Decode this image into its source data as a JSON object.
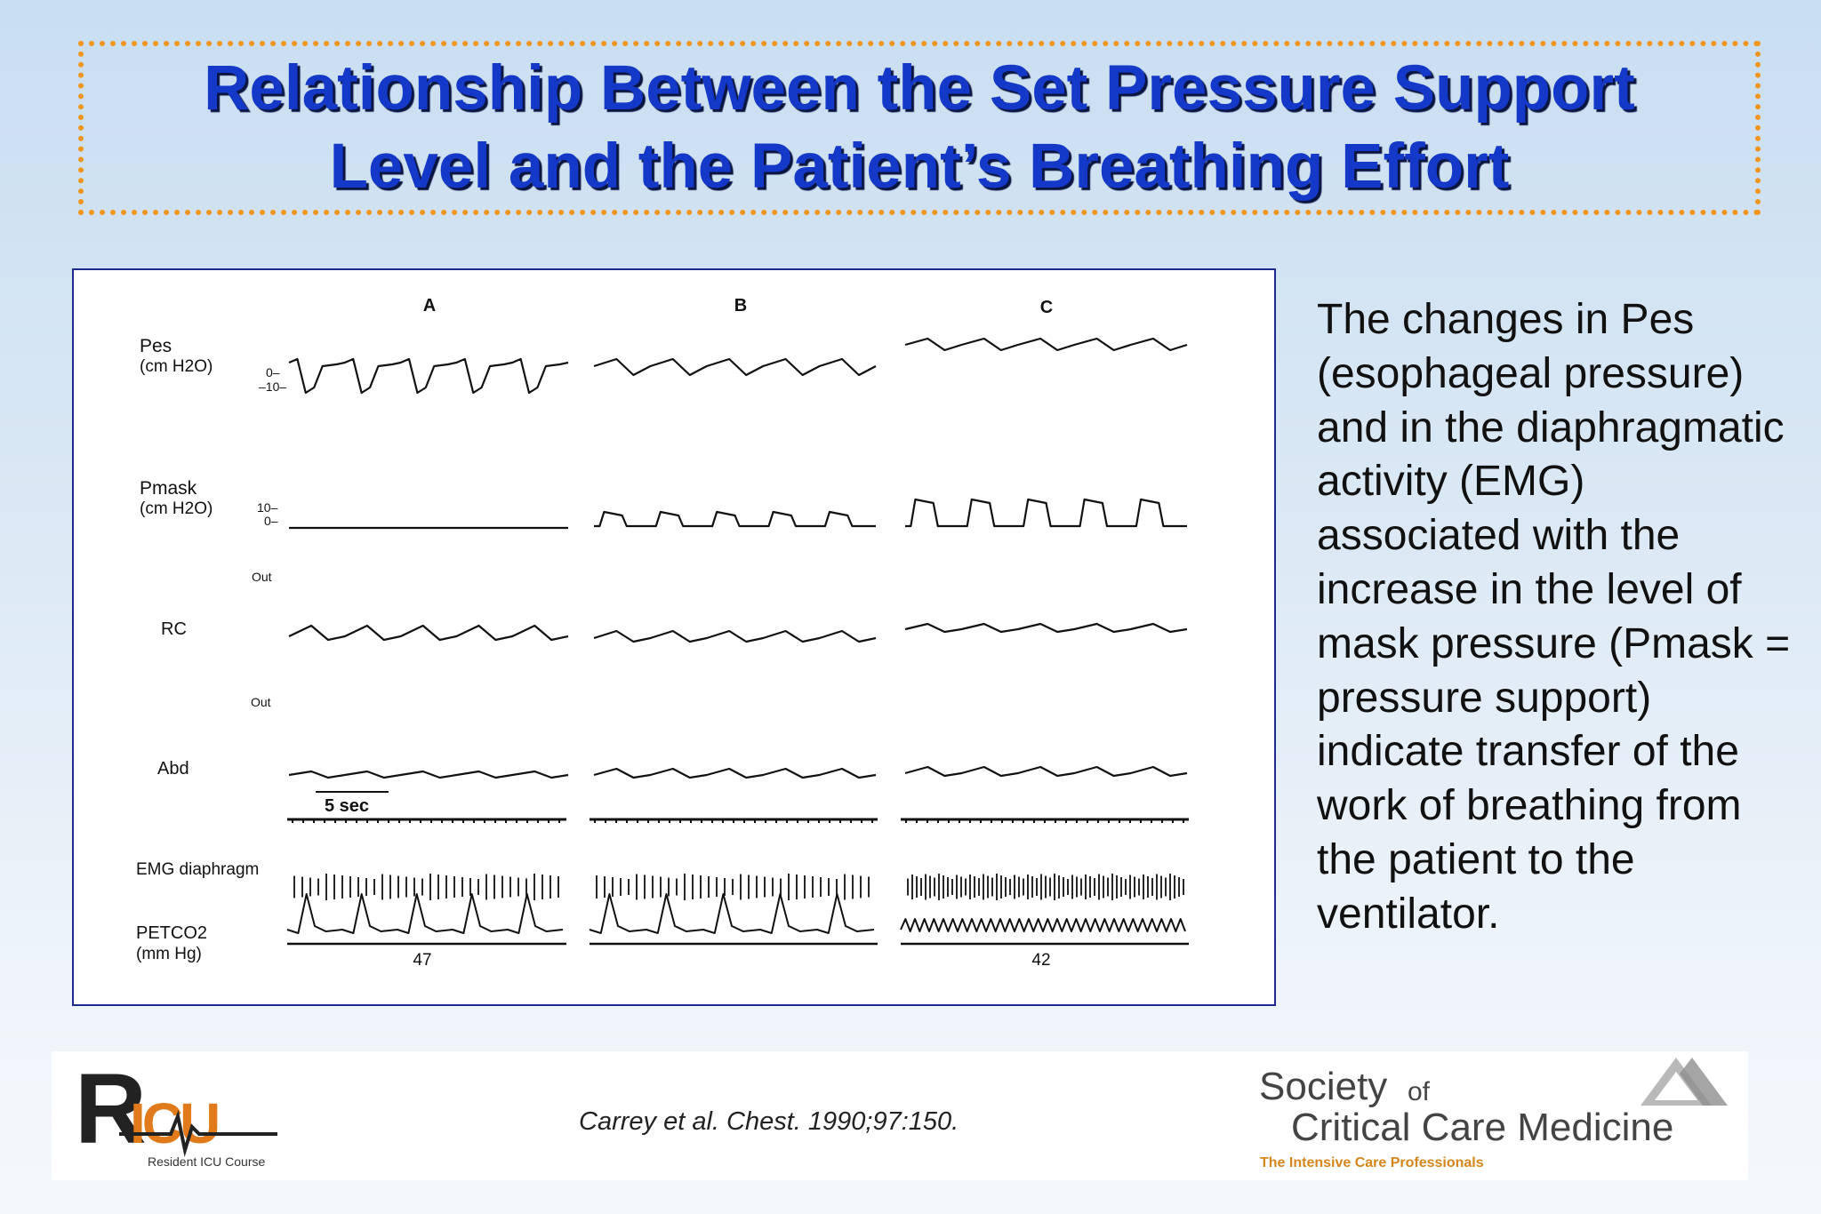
{
  "slide": {
    "title_line1": "Relationship Between the Set Pressure Support",
    "title_line2": "Level and the Patient’s Breathing Effort",
    "description": "The changes in Pes (esophageal pressure) and in the diaphragmatic activity (EMG) associated with the increase in the level of mask pressure (Pmask = pressure support) indicate transfer of the work of breathing from the patient to the ventilator.",
    "citation": "Carrey et al. Chest. 1990;97:150."
  },
  "figure": {
    "columns": [
      "A",
      "B",
      "C"
    ],
    "rows": {
      "pes_label": "Pes",
      "pes_units": "(cm H2O)",
      "pes_tick_zero": "0–",
      "pes_tick_neg10": "–10–",
      "pmask_label": "Pmask",
      "pmask_units": "(cm H2O)",
      "pmask_tick_10": "10–",
      "pmask_tick_0": "0–",
      "out_label_rc": "Out",
      "rc_label": "RC",
      "out_label_abd": "Out",
      "abd_label": "Abd",
      "time_scale": "5 sec",
      "emg_label": "EMG diaphragm",
      "petco2_label": "PETCO2",
      "petco2_units": "(mm Hg)"
    },
    "petco2_values": {
      "A": "47",
      "C": "42"
    }
  },
  "logos": {
    "ricu_letters": "RICU",
    "ricu_caption": "Resident ICU Course",
    "sccm_line1": "Society",
    "sccm_of": "of",
    "sccm_line2": "Critical Care Medicine",
    "sccm_tagline": "The Intensive Care Professionals"
  },
  "colors": {
    "title": "#1438c8",
    "border_dots": "#f0961e",
    "sccm_tagline": "#d4861c"
  }
}
